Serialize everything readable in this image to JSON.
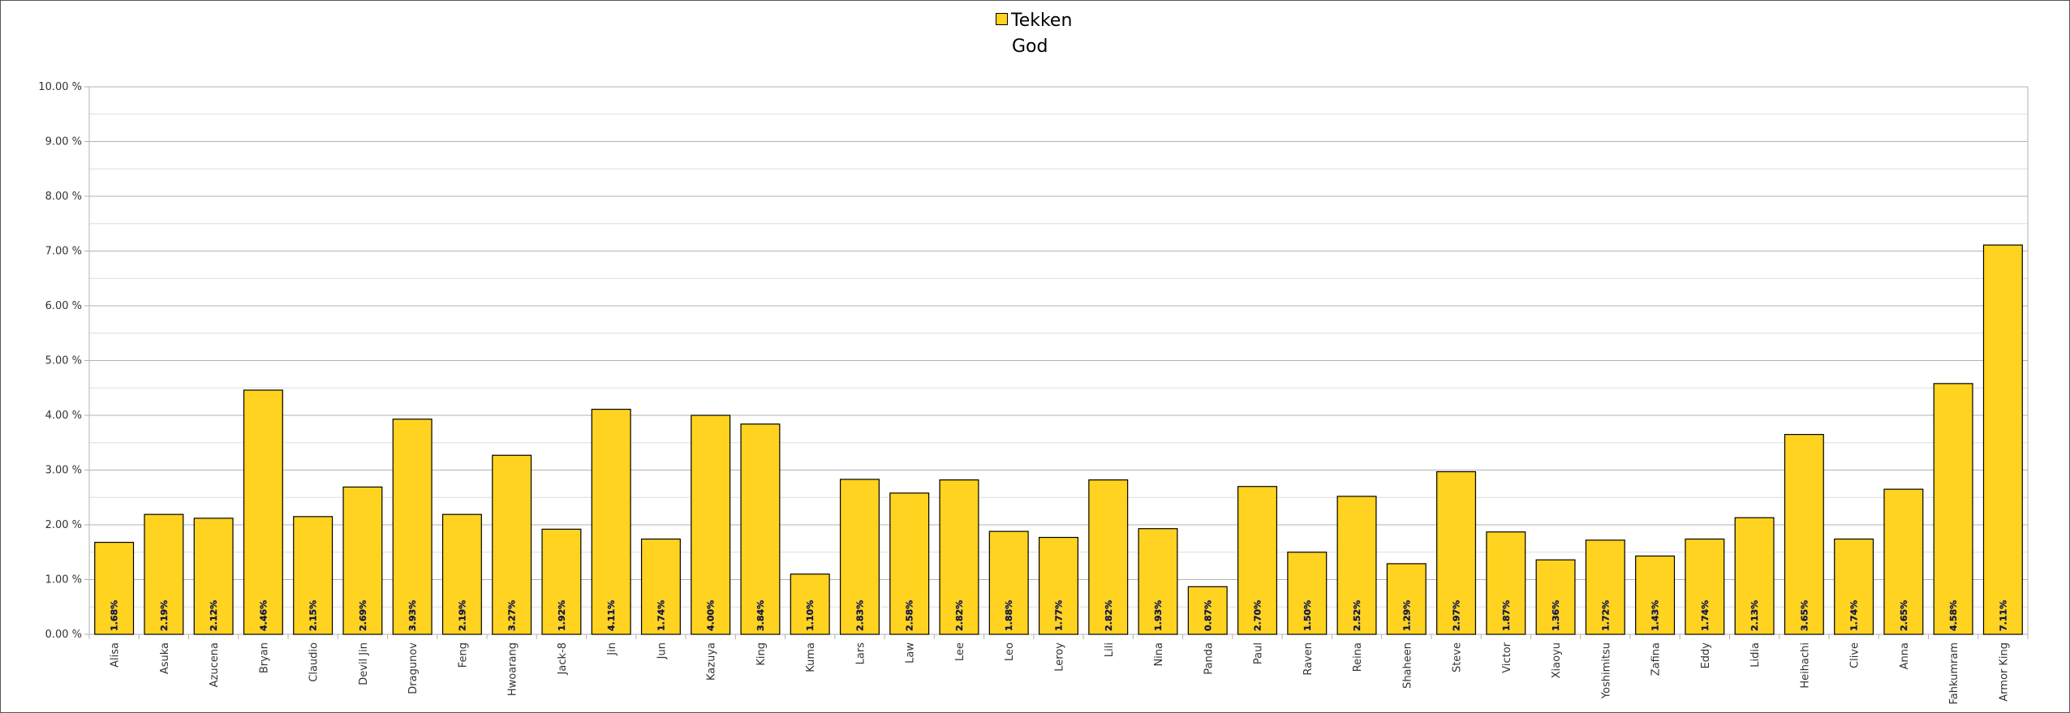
{
  "chart_data": {
    "type": "bar",
    "title": "God",
    "legend": {
      "position": "top",
      "entries": [
        "Tekken"
      ]
    },
    "series": [
      {
        "name": "Tekken",
        "color": "#ffd320",
        "values": [
          1.68,
          2.19,
          2.12,
          4.46,
          2.15,
          2.69,
          3.93,
          2.19,
          3.27,
          1.92,
          4.11,
          1.74,
          4.0,
          3.84,
          1.1,
          2.83,
          2.58,
          2.82,
          1.88,
          1.77,
          2.82,
          1.93,
          0.87,
          2.7,
          1.5,
          2.52,
          1.29,
          2.97,
          1.87,
          1.36,
          1.72,
          1.43,
          1.74,
          2.13,
          3.65,
          1.74,
          2.65,
          4.58,
          7.11
        ]
      }
    ],
    "categories": [
      "Alisa",
      "Asuka",
      "Azucena",
      "Bryan",
      "Claudio",
      "Devil Jin",
      "Dragunov",
      "Feng",
      "Hwoarang",
      "Jack-8",
      "Jin",
      "Jun",
      "Kazuya",
      "King",
      "Kuma",
      "Lars",
      "Law",
      "Lee",
      "Leo",
      "Leroy",
      "Lili",
      "Nina",
      "Panda",
      "Paul",
      "Raven",
      "Reina",
      "Shaheen",
      "Steve",
      "Victor",
      "Xiaoyu",
      "Yoshimitsu",
      "Zafina",
      "Eddy",
      "Lidia",
      "Heihachi",
      "Clive",
      "Anna",
      "Fahkumram",
      "Armor King"
    ],
    "data_labels": [
      "1.68%",
      "2.19%",
      "2.12%",
      "4.46%",
      "2.15%",
      "2.69%",
      "3.93%",
      "2.19%",
      "3.27%",
      "1.92%",
      "4.11%",
      "1.74%",
      "4.00%",
      "3.84%",
      "1.10%",
      "2.83%",
      "2.58%",
      "2.82%",
      "1.88%",
      "1.77%",
      "2.82%",
      "1.93%",
      "0.87%",
      "2.70%",
      "1.50%",
      "2.52%",
      "1.29%",
      "2.97%",
      "1.87%",
      "1.36%",
      "1.72%",
      "1.43%",
      "1.74%",
      "2.13%",
      "3.65%",
      "1.74%",
      "2.65%",
      "4.58%",
      "7.11%"
    ],
    "ylim": [
      0,
      10
    ],
    "yticks": [
      0,
      1,
      2,
      3,
      4,
      5,
      6,
      7,
      8,
      9,
      10
    ],
    "ytick_labels": [
      "0.00 %",
      "1.00 %",
      "2.00 %",
      "3.00 %",
      "4.00 %",
      "5.00 %",
      "6.00 %",
      "7.00 %",
      "8.00 %",
      "9.00 %",
      "10.00 %"
    ],
    "xlabel": "",
    "ylabel": "",
    "grid": true,
    "minor_grid": true,
    "colors": {
      "bar": "#ffd320",
      "bar_border": "#000000",
      "grid_major": "#b3b3b3",
      "grid_minor": "#dddddd"
    }
  }
}
